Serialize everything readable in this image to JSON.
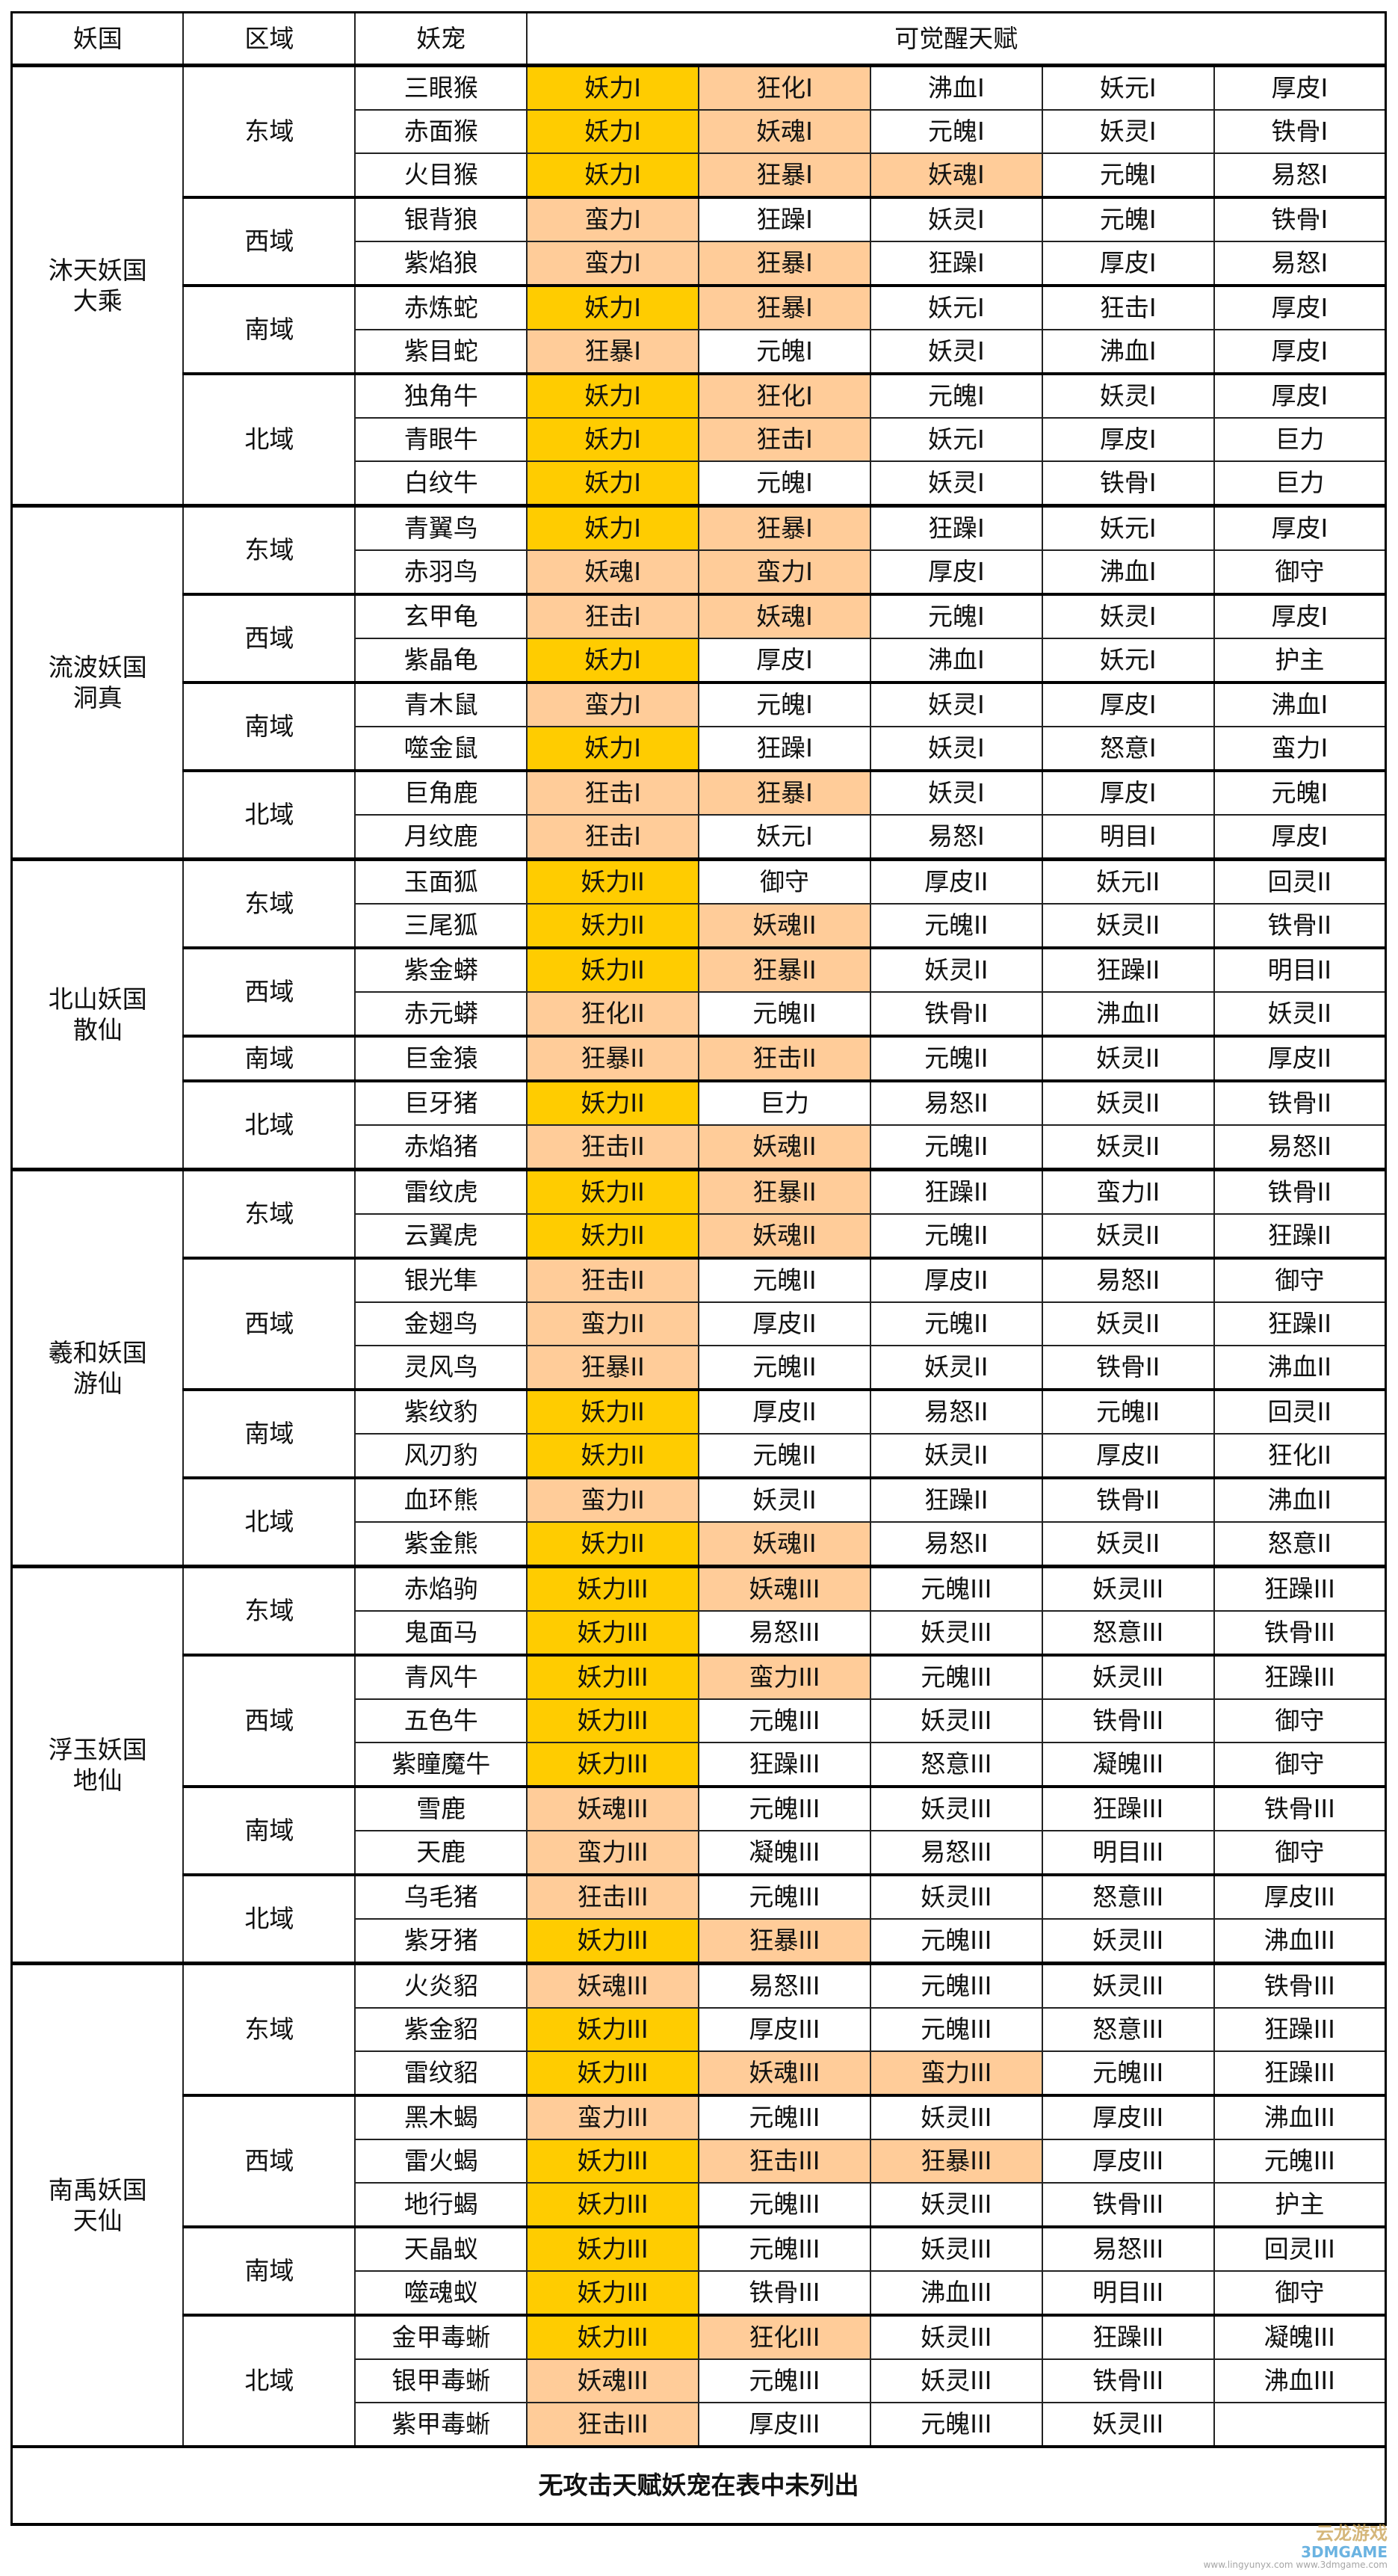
{
  "header": {
    "kingdom": "妖国",
    "region": "区域",
    "pet": "妖宠",
    "talents": "可觉醒天赋"
  },
  "colors": {
    "gold": "#FFCC00",
    "peach": "#FFCC99"
  },
  "footer": "无攻击天赋妖宠在表中未列出",
  "watermark": {
    "line1": "云龙游戏",
    "line2": "3DMGAME",
    "line3": "www.lingyunyx.com  www.3dmgame.com"
  },
  "kingdoms": [
    {
      "name": [
        "沐天妖国",
        "大乘"
      ],
      "regions": [
        {
          "name": "东域",
          "pets": [
            {
              "name": "三眼猴",
              "talents": [
                "妖力I",
                "狂化I",
                "沸血I",
                "妖元I",
                "厚皮I"
              ],
              "fill": [
                "gold",
                "peach"
              ]
            },
            {
              "name": "赤面猴",
              "talents": [
                "妖力I",
                "妖魂I",
                "元魄I",
                "妖灵I",
                "铁骨I"
              ],
              "fill": [
                "gold",
                "peach"
              ]
            },
            {
              "name": "火目猴",
              "talents": [
                "妖力I",
                "狂暴I",
                "妖魂I",
                "元魄I",
                "易怒I"
              ],
              "fill": [
                "gold",
                "peach",
                "peach"
              ]
            }
          ]
        },
        {
          "name": "西域",
          "pets": [
            {
              "name": "银背狼",
              "talents": [
                "蛮力I",
                "狂躁I",
                "妖灵I",
                "元魄I",
                "铁骨I"
              ],
              "fill": [
                "peach"
              ]
            },
            {
              "name": "紫焰狼",
              "talents": [
                "蛮力I",
                "狂暴I",
                "狂躁I",
                "厚皮I",
                "易怒I"
              ],
              "fill": [
                "peach",
                "peach"
              ]
            }
          ]
        },
        {
          "name": "南域",
          "pets": [
            {
              "name": "赤炼蛇",
              "talents": [
                "妖力I",
                "狂暴I",
                "妖元I",
                "狂击I",
                "厚皮I"
              ],
              "fill": [
                "gold",
                "peach"
              ]
            },
            {
              "name": "紫目蛇",
              "talents": [
                "狂暴I",
                "元魄I",
                "妖灵I",
                "沸血I",
                "厚皮I"
              ],
              "fill": [
                "peach"
              ]
            }
          ]
        },
        {
          "name": "北域",
          "pets": [
            {
              "name": "独角牛",
              "talents": [
                "妖力I",
                "狂化I",
                "元魄I",
                "妖灵I",
                "厚皮I"
              ],
              "fill": [
                "gold",
                "peach"
              ]
            },
            {
              "name": "青眼牛",
              "talents": [
                "妖力I",
                "狂击I",
                "妖元I",
                "厚皮I",
                "巨力"
              ],
              "fill": [
                "gold",
                "peach"
              ]
            },
            {
              "name": "白纹牛",
              "talents": [
                "妖力I",
                "元魄I",
                "妖灵I",
                "铁骨I",
                "巨力"
              ],
              "fill": [
                "gold"
              ]
            }
          ]
        }
      ]
    },
    {
      "name": [
        "流波妖国",
        "洞真"
      ],
      "regions": [
        {
          "name": "东域",
          "pets": [
            {
              "name": "青翼鸟",
              "talents": [
                "妖力I",
                "狂暴I",
                "狂躁I",
                "妖元I",
                "厚皮I"
              ],
              "fill": [
                "gold",
                "peach"
              ]
            },
            {
              "name": "赤羽鸟",
              "talents": [
                "妖魂I",
                "蛮力I",
                "厚皮I",
                "沸血I",
                "御守"
              ],
              "fill": [
                "peach",
                "peach"
              ]
            }
          ]
        },
        {
          "name": "西域",
          "pets": [
            {
              "name": "玄甲龟",
              "talents": [
                "狂击I",
                "妖魂I",
                "元魄I",
                "妖灵I",
                "厚皮I"
              ],
              "fill": [
                "peach",
                "peach"
              ]
            },
            {
              "name": "紫晶龟",
              "talents": [
                "妖力I",
                "厚皮I",
                "沸血I",
                "妖元I",
                "护主"
              ],
              "fill": [
                "gold"
              ]
            }
          ]
        },
        {
          "name": "南域",
          "pets": [
            {
              "name": "青木鼠",
              "talents": [
                "蛮力I",
                "元魄I",
                "妖灵I",
                "厚皮I",
                "沸血I"
              ],
              "fill": [
                "peach"
              ]
            },
            {
              "name": "噬金鼠",
              "talents": [
                "妖力I",
                "狂躁I",
                "妖灵I",
                "怒意I",
                "蛮力I"
              ],
              "fill": [
                "gold"
              ]
            }
          ]
        },
        {
          "name": "北域",
          "pets": [
            {
              "name": "巨角鹿",
              "talents": [
                "狂击I",
                "狂暴I",
                "妖灵I",
                "厚皮I",
                "元魄I"
              ],
              "fill": [
                "peach",
                "peach"
              ]
            },
            {
              "name": "月纹鹿",
              "talents": [
                "狂击I",
                "妖元I",
                "易怒I",
                "明目I",
                "厚皮I"
              ],
              "fill": [
                "peach"
              ]
            }
          ]
        }
      ]
    },
    {
      "name": [
        "北山妖国",
        "散仙"
      ],
      "regions": [
        {
          "name": "东域",
          "pets": [
            {
              "name": "玉面狐",
              "talents": [
                "妖力II",
                "御守",
                "厚皮II",
                "妖元II",
                "回灵II"
              ],
              "fill": [
                "gold"
              ]
            },
            {
              "name": "三尾狐",
              "talents": [
                "妖力II",
                "妖魂II",
                "元魄II",
                "妖灵II",
                "铁骨II"
              ],
              "fill": [
                "gold",
                "peach"
              ]
            }
          ]
        },
        {
          "name": "西域",
          "pets": [
            {
              "name": "紫金蟒",
              "talents": [
                "妖力II",
                "狂暴II",
                "妖灵II",
                "狂躁II",
                "明目II"
              ],
              "fill": [
                "gold",
                "peach"
              ]
            },
            {
              "name": "赤元蟒",
              "talents": [
                "狂化II",
                "元魄II",
                "铁骨II",
                "沸血II",
                "妖灵II"
              ],
              "fill": [
                "peach"
              ]
            }
          ]
        },
        {
          "name": "南域",
          "pets": [
            {
              "name": "巨金猿",
              "talents": [
                "狂暴II",
                "狂击II",
                "元魄II",
                "妖灵II",
                "厚皮II"
              ],
              "fill": [
                "peach",
                "peach"
              ]
            }
          ]
        },
        {
          "name": "北域",
          "pets": [
            {
              "name": "巨牙猪",
              "talents": [
                "妖力II",
                "巨力",
                "易怒II",
                "妖灵II",
                "铁骨II"
              ],
              "fill": [
                "gold"
              ]
            },
            {
              "name": "赤焰猪",
              "talents": [
                "狂击II",
                "妖魂II",
                "元魄II",
                "妖灵II",
                "易怒II"
              ],
              "fill": [
                "peach",
                "peach"
              ]
            }
          ]
        }
      ]
    },
    {
      "name": [
        "羲和妖国",
        "游仙"
      ],
      "regions": [
        {
          "name": "东域",
          "pets": [
            {
              "name": "雷纹虎",
              "talents": [
                "妖力II",
                "狂暴II",
                "狂躁II",
                "蛮力II",
                "铁骨II"
              ],
              "fill": [
                "gold",
                "peach"
              ]
            },
            {
              "name": "云翼虎",
              "talents": [
                "妖力II",
                "妖魂II",
                "元魄II",
                "妖灵II",
                "狂躁II"
              ],
              "fill": [
                "gold",
                "peach"
              ]
            }
          ]
        },
        {
          "name": "西域",
          "pets": [
            {
              "name": "银光隼",
              "talents": [
                "狂击II",
                "元魄II",
                "厚皮II",
                "易怒II",
                "御守"
              ],
              "fill": [
                "peach"
              ]
            },
            {
              "name": "金翅鸟",
              "talents": [
                "蛮力II",
                "厚皮II",
                "元魄II",
                "妖灵II",
                "狂躁II"
              ],
              "fill": [
                "peach"
              ]
            },
            {
              "name": "灵风鸟",
              "talents": [
                "狂暴II",
                "元魄II",
                "妖灵II",
                "铁骨II",
                "沸血II"
              ],
              "fill": [
                "peach"
              ]
            }
          ]
        },
        {
          "name": "南域",
          "pets": [
            {
              "name": "紫纹豹",
              "talents": [
                "妖力II",
                "厚皮II",
                "易怒II",
                "元魄II",
                "回灵II"
              ],
              "fill": [
                "gold"
              ]
            },
            {
              "name": "风刃豹",
              "talents": [
                "妖力II",
                "元魄II",
                "妖灵II",
                "厚皮II",
                "狂化II"
              ],
              "fill": [
                "gold"
              ]
            }
          ]
        },
        {
          "name": "北域",
          "pets": [
            {
              "name": "血环熊",
              "talents": [
                "蛮力II",
                "妖灵II",
                "狂躁II",
                "铁骨II",
                "沸血II"
              ],
              "fill": [
                "peach"
              ]
            },
            {
              "name": "紫金熊",
              "talents": [
                "妖力II",
                "妖魂II",
                "易怒II",
                "妖灵II",
                "怒意II"
              ],
              "fill": [
                "gold",
                "peach"
              ]
            }
          ]
        }
      ]
    },
    {
      "name": [
        "浮玉妖国",
        "地仙"
      ],
      "regions": [
        {
          "name": "东域",
          "pets": [
            {
              "name": "赤焰驹",
              "talents": [
                "妖力III",
                "妖魂III",
                "元魄III",
                "妖灵III",
                "狂躁III"
              ],
              "fill": [
                "gold",
                "peach"
              ]
            },
            {
              "name": "鬼面马",
              "talents": [
                "妖力III",
                "易怒III",
                "妖灵III",
                "怒意III",
                "铁骨III"
              ],
              "fill": [
                "gold"
              ]
            }
          ]
        },
        {
          "name": "西域",
          "pets": [
            {
              "name": "青风牛",
              "talents": [
                "妖力III",
                "蛮力III",
                "元魄III",
                "妖灵III",
                "狂躁III"
              ],
              "fill": [
                "gold",
                "peach"
              ]
            },
            {
              "name": "五色牛",
              "talents": [
                "妖力III",
                "元魄III",
                "妖灵III",
                "铁骨III",
                "御守"
              ],
              "fill": [
                "gold"
              ]
            },
            {
              "name": "紫瞳魔牛",
              "talents": [
                "妖力III",
                "狂躁III",
                "怒意III",
                "凝魄III",
                "御守"
              ],
              "fill": [
                "gold"
              ]
            }
          ]
        },
        {
          "name": "南域",
          "pets": [
            {
              "name": "雪鹿",
              "talents": [
                "妖魂III",
                "元魄III",
                "妖灵III",
                "狂躁III",
                "铁骨III"
              ],
              "fill": [
                "peach"
              ]
            },
            {
              "name": "天鹿",
              "talents": [
                "蛮力III",
                "凝魄III",
                "易怒III",
                "明目III",
                "御守"
              ],
              "fill": [
                "peach"
              ]
            }
          ]
        },
        {
          "name": "北域",
          "pets": [
            {
              "name": "乌毛猪",
              "talents": [
                "狂击III",
                "元魄III",
                "妖灵III",
                "怒意III",
                "厚皮III"
              ],
              "fill": [
                "peach"
              ]
            },
            {
              "name": "紫牙猪",
              "talents": [
                "妖力III",
                "狂暴III",
                "元魄III",
                "妖灵III",
                "沸血III"
              ],
              "fill": [
                "gold",
                "peach"
              ]
            }
          ]
        }
      ]
    },
    {
      "name": [
        "南禹妖国",
        "天仙"
      ],
      "regions": [
        {
          "name": "东域",
          "pets": [
            {
              "name": "火炎貂",
              "talents": [
                "妖魂III",
                "易怒III",
                "元魄III",
                "妖灵III",
                "铁骨III"
              ],
              "fill": [
                "peach"
              ]
            },
            {
              "name": "紫金貂",
              "talents": [
                "妖力III",
                "厚皮III",
                "元魄III",
                "怒意III",
                "狂躁III"
              ],
              "fill": [
                "gold"
              ]
            },
            {
              "name": "雷纹貂",
              "talents": [
                "妖力III",
                "妖魂III",
                "蛮力III",
                "元魄III",
                "狂躁III"
              ],
              "fill": [
                "gold",
                "peach",
                "peach"
              ]
            }
          ]
        },
        {
          "name": "西域",
          "pets": [
            {
              "name": "黑木蝎",
              "talents": [
                "蛮力III",
                "元魄III",
                "妖灵III",
                "厚皮III",
                "沸血III"
              ],
              "fill": [
                "peach"
              ]
            },
            {
              "name": "雷火蝎",
              "talents": [
                "妖力III",
                "狂击III",
                "狂暴III",
                "厚皮III",
                "元魄III"
              ],
              "fill": [
                "gold",
                "peach",
                "peach"
              ]
            },
            {
              "name": "地行蝎",
              "talents": [
                "妖力III",
                "元魄III",
                "妖灵III",
                "铁骨III",
                "护主"
              ],
              "fill": [
                "gold"
              ]
            }
          ]
        },
        {
          "name": "南域",
          "pets": [
            {
              "name": "天晶蚁",
              "talents": [
                "妖力III",
                "元魄III",
                "妖灵III",
                "易怒III",
                "回灵III"
              ],
              "fill": [
                "gold"
              ]
            },
            {
              "name": "噬魂蚁",
              "talents": [
                "妖力III",
                "铁骨III",
                "沸血III",
                "明目III",
                "御守"
              ],
              "fill": [
                "gold"
              ]
            }
          ]
        },
        {
          "name": "北域",
          "pets": [
            {
              "name": "金甲毒蜥",
              "talents": [
                "妖力III",
                "狂化III",
                "妖灵III",
                "狂躁III",
                "凝魄III"
              ],
              "fill": [
                "gold",
                "peach"
              ]
            },
            {
              "name": "银甲毒蜥",
              "talents": [
                "妖魂III",
                "元魄III",
                "妖灵III",
                "铁骨III",
                "沸血III"
              ],
              "fill": [
                "peach"
              ]
            },
            {
              "name": "紫甲毒蜥",
              "talents": [
                "狂击III",
                "厚皮III",
                "元魄III",
                "妖灵III",
                ""
              ],
              "fill": [
                "peach"
              ]
            }
          ]
        }
      ]
    }
  ]
}
